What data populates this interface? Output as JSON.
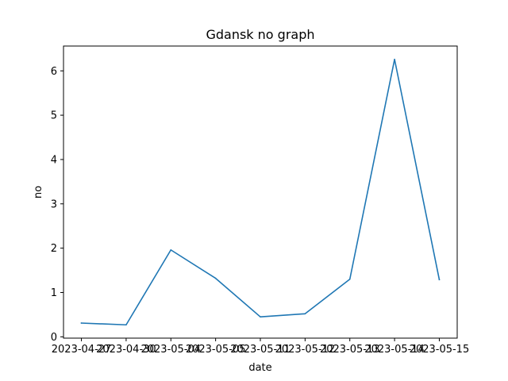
{
  "chart_data": {
    "type": "line",
    "title": "Gdansk no graph",
    "xlabel": "date",
    "ylabel": "no",
    "x": [
      "2023-04-27",
      "2023-04-30",
      "2023-05-04",
      "2023-05-05",
      "2023-05-11",
      "2023-05-12",
      "2023-05-13",
      "2023-05-14",
      "2023-05-15"
    ],
    "series": [
      {
        "values": [
          0.31,
          0.27,
          1.96,
          1.32,
          0.45,
          0.52,
          1.3,
          6.26,
          1.29
        ],
        "color": "#1f77b4"
      }
    ],
    "yticks": [
      0,
      1,
      2,
      3,
      4,
      5,
      6
    ],
    "ylim": [
      -0.03,
      6.56
    ],
    "grid": false,
    "legend": "none"
  }
}
